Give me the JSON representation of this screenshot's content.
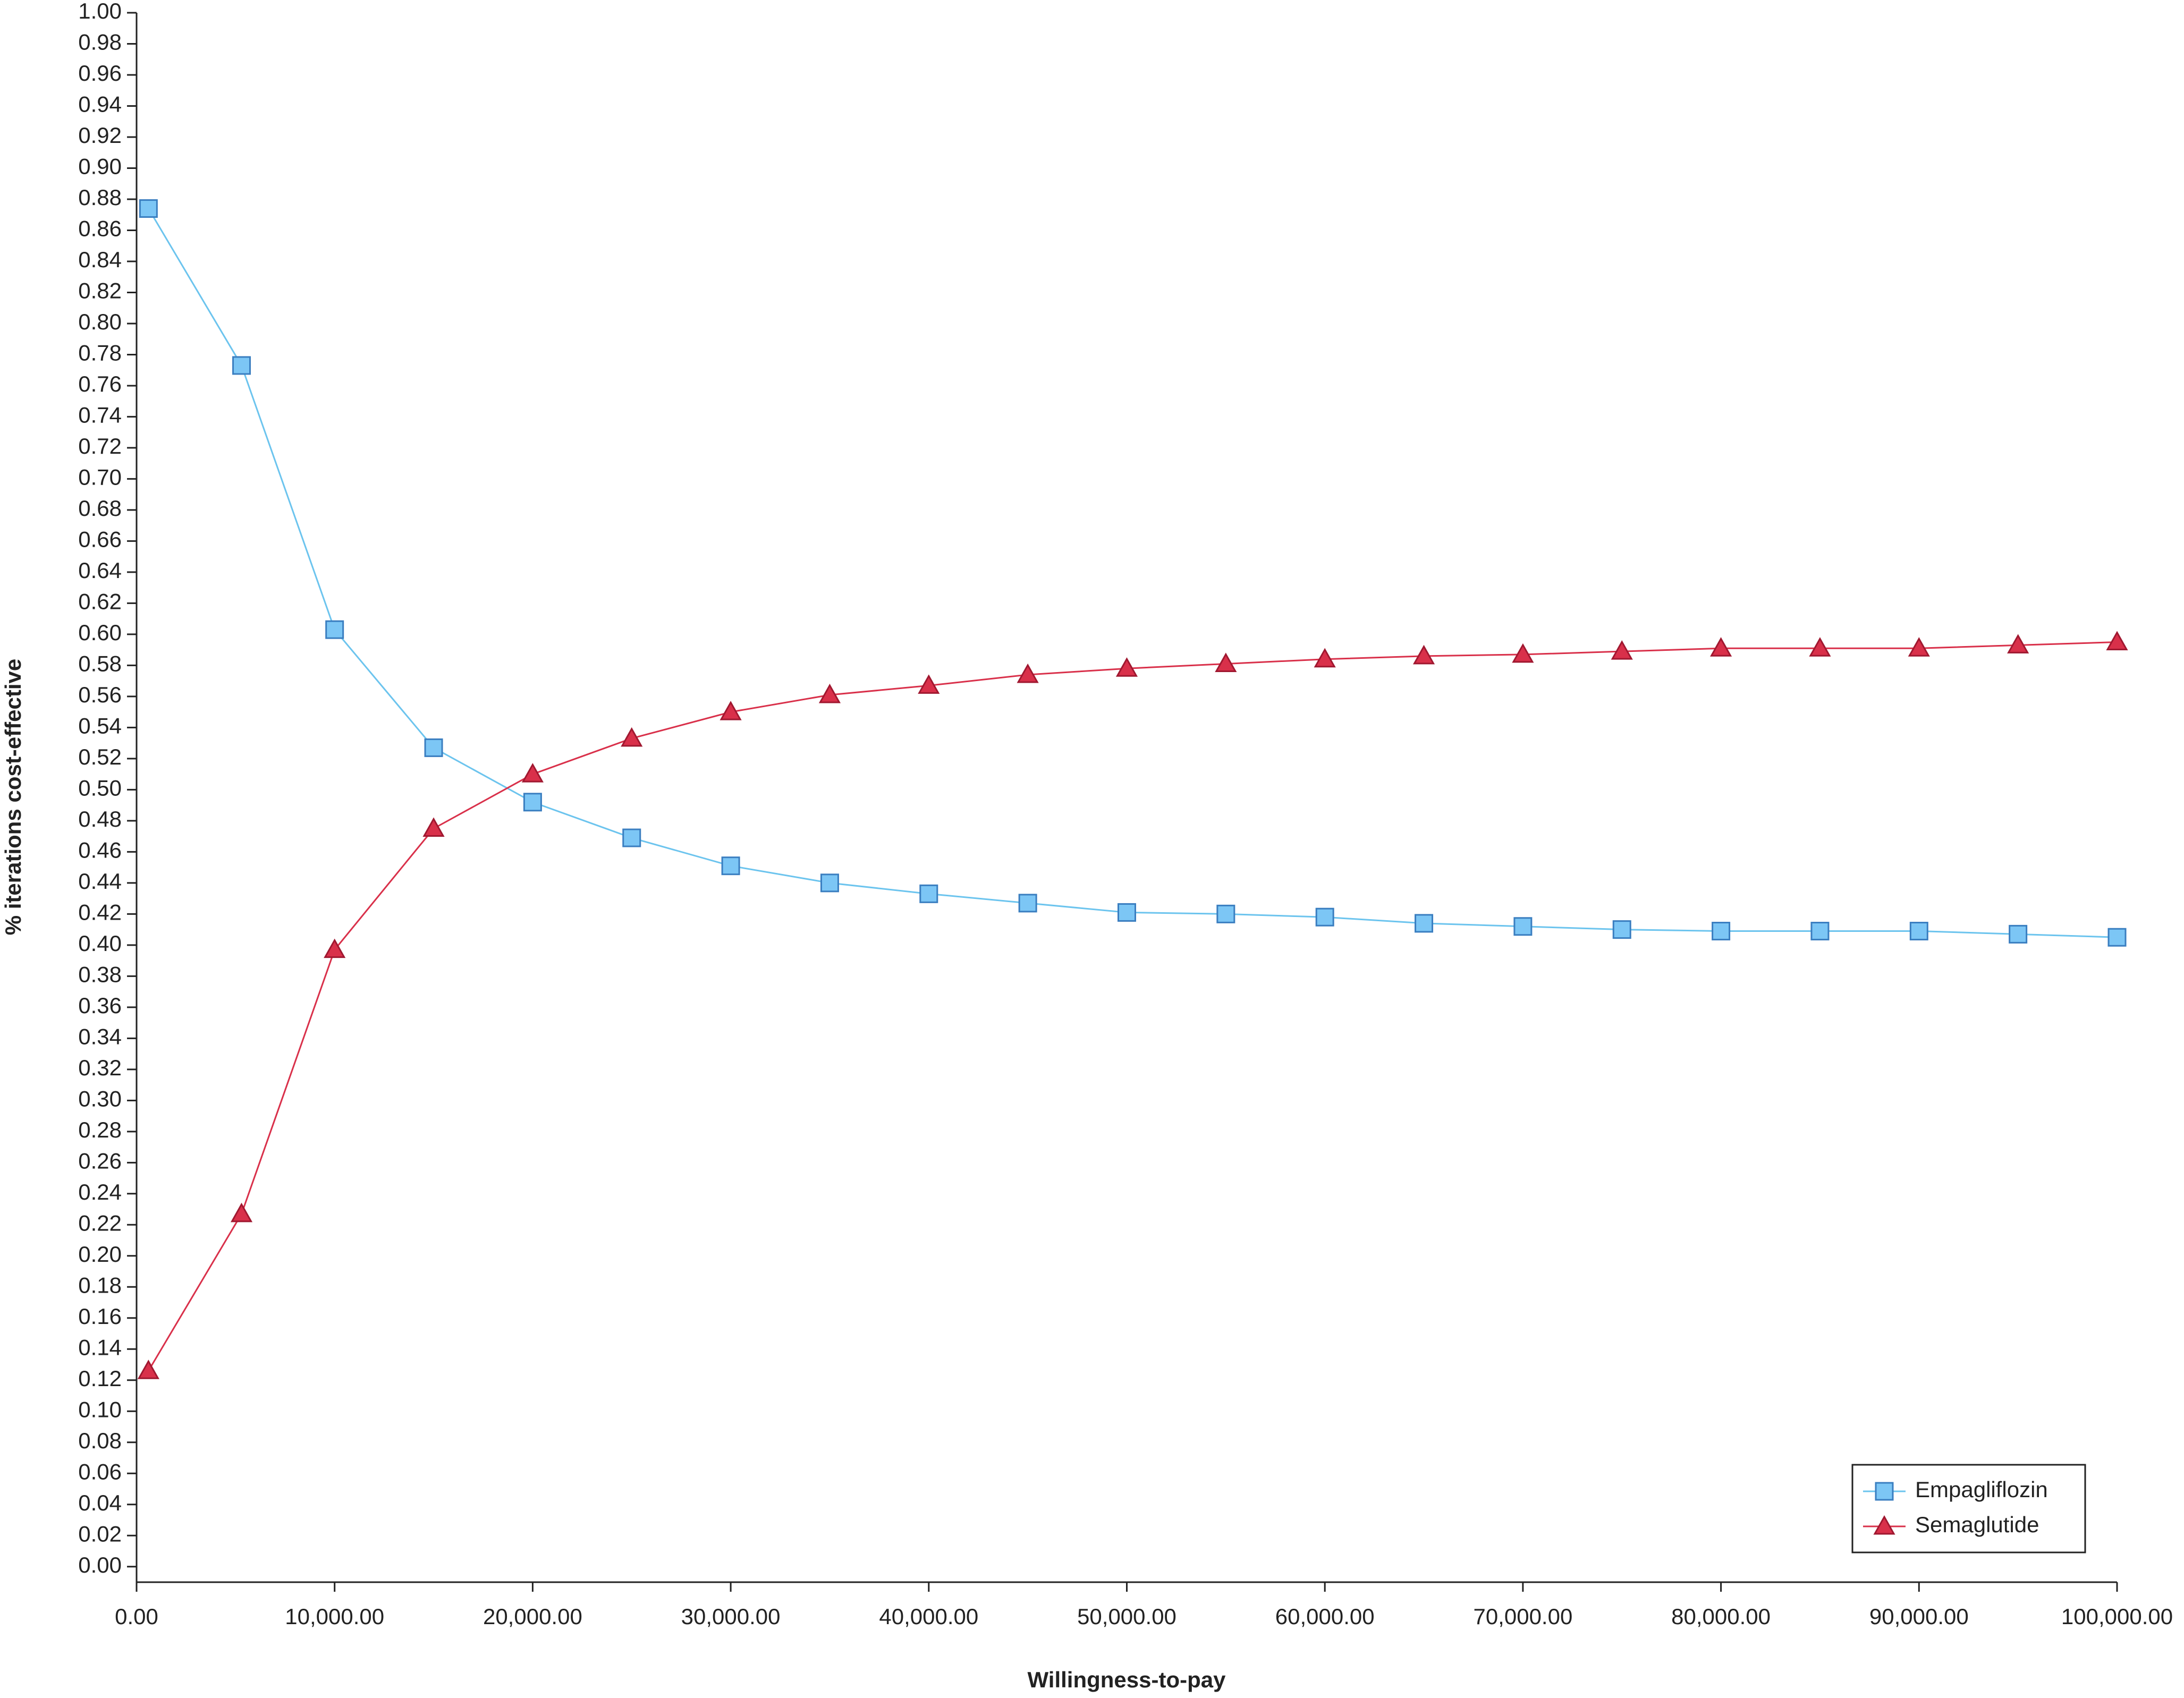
{
  "chart_data": {
    "type": "line",
    "xlabel": "Willingness-to-pay",
    "ylabel": "% iterations cost-effective",
    "x": [
      600,
      5300,
      10000,
      15000,
      20000,
      25000,
      30000,
      35000,
      40000,
      45000,
      50000,
      55000,
      60000,
      65000,
      70000,
      75000,
      80000,
      85000,
      90000,
      95000,
      100000
    ],
    "series": [
      {
        "name": "Empagliflozin",
        "color": "#7cc6f5",
        "values": [
          0.874,
          0.773,
          0.603,
          0.527,
          0.492,
          0.469,
          0.451,
          0.44,
          0.433,
          0.427,
          0.421,
          0.42,
          0.418,
          0.414,
          0.412,
          0.41,
          0.409,
          0.409,
          0.409,
          0.407,
          0.405
        ]
      },
      {
        "name": "Semaglutide",
        "color": "#d9304a",
        "values": [
          0.126,
          0.227,
          0.397,
          0.475,
          0.51,
          0.533,
          0.55,
          0.561,
          0.567,
          0.574,
          0.578,
          0.581,
          0.584,
          0.586,
          0.587,
          0.589,
          0.591,
          0.591,
          0.591,
          0.593,
          0.595
        ]
      }
    ],
    "xlim": [
      0,
      100000
    ],
    "xticks": [
      {
        "value": 0,
        "label": "0.00"
      },
      {
        "value": 10000,
        "label": "10,000.00"
      },
      {
        "value": 20000,
        "label": "20,000.00"
      },
      {
        "value": 30000,
        "label": "30,000.00"
      },
      {
        "value": 40000,
        "label": "40,000.00"
      },
      {
        "value": 50000,
        "label": "50,000.00"
      },
      {
        "value": 60000,
        "label": "60,000.00"
      },
      {
        "value": 70000,
        "label": "70,000.00"
      },
      {
        "value": 80000,
        "label": "80,000.00"
      },
      {
        "value": 90000,
        "label": "90,000.00"
      },
      {
        "value": 100000,
        "label": "100,000.00"
      }
    ],
    "ylim": [
      -0.01,
      1.0
    ],
    "yticks": [
      {
        "value": 0,
        "label": "0.00"
      },
      {
        "value": 0.02,
        "label": "0.02"
      },
      {
        "value": 0.04,
        "label": "0.04"
      },
      {
        "value": 0.06,
        "label": "0.06"
      },
      {
        "value": 0.08,
        "label": "0.08"
      },
      {
        "value": 0.1,
        "label": "0.10"
      },
      {
        "value": 0.12,
        "label": "0.12"
      },
      {
        "value": 0.14,
        "label": "0.14"
      },
      {
        "value": 0.16,
        "label": "0.16"
      },
      {
        "value": 0.18,
        "label": "0.18"
      },
      {
        "value": 0.2,
        "label": "0.20"
      },
      {
        "value": 0.22,
        "label": "0.22"
      },
      {
        "value": 0.24,
        "label": "0.24"
      },
      {
        "value": 0.26,
        "label": "0.26"
      },
      {
        "value": 0.28,
        "label": "0.28"
      },
      {
        "value": 0.3,
        "label": "0.30"
      },
      {
        "value": 0.32,
        "label": "0.32"
      },
      {
        "value": 0.34,
        "label": "0.34"
      },
      {
        "value": 0.36,
        "label": "0.36"
      },
      {
        "value": 0.38,
        "label": "0.38"
      },
      {
        "value": 0.4,
        "label": "0.40"
      },
      {
        "value": 0.42,
        "label": "0.42"
      },
      {
        "value": 0.44,
        "label": "0.44"
      },
      {
        "value": 0.46,
        "label": "0.46"
      },
      {
        "value": 0.48,
        "label": "0.48"
      },
      {
        "value": 0.5,
        "label": "0.50"
      },
      {
        "value": 0.52,
        "label": "0.52"
      },
      {
        "value": 0.54,
        "label": "0.54"
      },
      {
        "value": 0.56,
        "label": "0.56"
      },
      {
        "value": 0.58,
        "label": "0.58"
      },
      {
        "value": 0.6,
        "label": "0.60"
      },
      {
        "value": 0.62,
        "label": "0.62"
      },
      {
        "value": 0.64,
        "label": "0.64"
      },
      {
        "value": 0.66,
        "label": "0.66"
      },
      {
        "value": 0.68,
        "label": "0.68"
      },
      {
        "value": 0.7,
        "label": "0.70"
      },
      {
        "value": 0.72,
        "label": "0.72"
      },
      {
        "value": 0.74,
        "label": "0.74"
      },
      {
        "value": 0.76,
        "label": "0.76"
      },
      {
        "value": 0.78,
        "label": "0.78"
      },
      {
        "value": 0.8,
        "label": "0.80"
      },
      {
        "value": 0.82,
        "label": "0.82"
      },
      {
        "value": 0.84,
        "label": "0.84"
      },
      {
        "value": 0.86,
        "label": "0.86"
      },
      {
        "value": 0.88,
        "label": "0.88"
      },
      {
        "value": 0.9,
        "label": "0.90"
      },
      {
        "value": 0.92,
        "label": "0.92"
      },
      {
        "value": 0.94,
        "label": "0.94"
      },
      {
        "value": 0.96,
        "label": "0.96"
      },
      {
        "value": 0.98,
        "label": "0.98"
      },
      {
        "value": 1.0,
        "label": "1.00"
      }
    ],
    "grid": false,
    "legend": "lower right"
  }
}
